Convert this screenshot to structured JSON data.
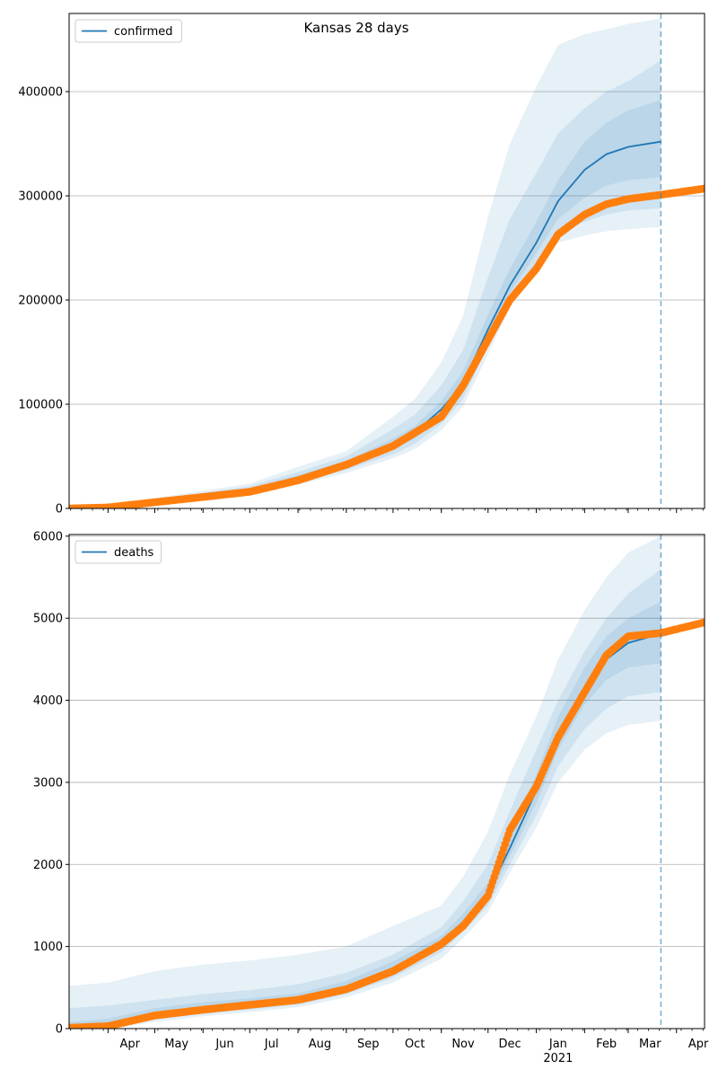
{
  "figure_title": "Kansas 28 days",
  "colors": {
    "model": "#1f77b4",
    "observed": "#ff7f0e",
    "grid": "#b0b0b0",
    "frame": "#000000"
  },
  "x_axis": {
    "month_labels": [
      "Apr",
      "May",
      "Jun",
      "Jul",
      "Aug",
      "Sep",
      "Oct",
      "Nov",
      "Dec",
      "Jan",
      "Feb",
      "Mar",
      "Apr"
    ],
    "year_label": "2021"
  },
  "chart_data": [
    {
      "type": "line",
      "title": "Kansas 28 days",
      "legend": [
        "confirmed"
      ],
      "legend_position": "top-left",
      "grid": "y",
      "xlim": [
        "2020-03-07",
        "2021-04-19"
      ],
      "ylim": [
        0,
        475000
      ],
      "yticks": [
        0,
        100000,
        200000,
        300000,
        400000
      ],
      "ytick_labels": [
        "0",
        "100000",
        "200000",
        "300000",
        "400000"
      ],
      "forecast_start": "2021-03-22",
      "x": [
        "2020-03-07",
        "2020-04-01",
        "2020-05-01",
        "2020-06-01",
        "2020-07-01",
        "2020-08-01",
        "2020-09-01",
        "2020-10-01",
        "2020-10-15",
        "2020-11-01",
        "2020-11-15",
        "2020-12-01",
        "2020-12-15",
        "2021-01-01",
        "2021-01-15",
        "2021-02-01",
        "2021-02-15",
        "2021-03-01",
        "2021-03-22"
      ],
      "series": [
        {
          "name": "confirmed",
          "values": [
            0,
            1000,
            7000,
            12000,
            18000,
            30000,
            43000,
            62000,
            73000,
            95000,
            120000,
            172000,
            214000,
            255000,
            295000,
            325000,
            340000,
            347000,
            352000
          ]
        }
      ],
      "bands": [
        {
          "lower": [
            0,
            400,
            4000,
            8000,
            14000,
            23000,
            34000,
            48000,
            57000,
            75000,
            98000,
            148000,
            193000,
            228000,
            255000,
            262000,
            266000,
            268000,
            270000
          ],
          "upper": [
            2000,
            2000,
            10000,
            17000,
            24000,
            40000,
            55000,
            88000,
            105000,
            140000,
            185000,
            280000,
            350000,
            405000,
            445000,
            455000,
            460000,
            465000,
            470000
          ]
        },
        {
          "lower": [
            0,
            600,
            5000,
            9500,
            15500,
            25000,
            37000,
            52000,
            62000,
            81000,
            105000,
            156000,
            200000,
            236000,
            264000,
            275000,
            282000,
            286000,
            288000
          ],
          "upper": [
            1500,
            1500,
            8500,
            15000,
            21500,
            35000,
            50000,
            76000,
            90000,
            118000,
            152000,
            222000,
            278000,
            322000,
            360000,
            384000,
            400000,
            410000,
            430000
          ]
        },
        {
          "lower": [
            0,
            800,
            6000,
            11000,
            17000,
            28000,
            40000,
            57000,
            67000,
            88000,
            112000,
            163000,
            207000,
            245000,
            278000,
            298000,
            310000,
            315000,
            318000
          ],
          "upper": [
            1000,
            1200,
            7500,
            13000,
            19000,
            32000,
            46000,
            67000,
            79000,
            103000,
            132000,
            186000,
            230000,
            275000,
            315000,
            352000,
            370000,
            382000,
            392000
          ]
        }
      ],
      "observed": {
        "x": [
          "2020-03-07",
          "2020-04-01",
          "2020-05-01",
          "2020-06-01",
          "2020-07-01",
          "2020-08-01",
          "2020-09-01",
          "2020-10-01",
          "2020-11-01",
          "2020-11-15",
          "2020-12-01",
          "2020-12-15",
          "2021-01-01",
          "2021-01-15",
          "2021-02-01",
          "2021-02-15",
          "2021-03-01",
          "2021-03-22",
          "2021-04-19"
        ],
        "values": [
          0,
          1000,
          6000,
          11000,
          16000,
          27000,
          42000,
          60000,
          88000,
          118000,
          162000,
          200000,
          230000,
          263000,
          282000,
          292000,
          297000,
          301000,
          307000
        ]
      }
    },
    {
      "type": "line",
      "title": "",
      "legend": [
        "deaths"
      ],
      "legend_position": "top-left",
      "grid": "y",
      "xlim": [
        "2020-03-07",
        "2021-04-19"
      ],
      "ylim": [
        0,
        6020
      ],
      "yticks": [
        0,
        1000,
        2000,
        3000,
        4000,
        5000,
        6000
      ],
      "ytick_labels": [
        "0",
        "1000",
        "2000",
        "3000",
        "4000",
        "5000",
        "6000"
      ],
      "forecast_start": "2021-03-22",
      "x": [
        "2020-03-07",
        "2020-04-01",
        "2020-05-01",
        "2020-06-01",
        "2020-07-01",
        "2020-08-01",
        "2020-09-01",
        "2020-10-01",
        "2020-11-01",
        "2020-11-15",
        "2020-12-01",
        "2020-12-15",
        "2021-01-01",
        "2021-01-15",
        "2021-02-01",
        "2021-02-15",
        "2021-03-01",
        "2021-03-22"
      ],
      "series": [
        {
          "name": "deaths",
          "values": [
            10,
            30,
            160,
            240,
            290,
            350,
            500,
            740,
            1060,
            1300,
            1650,
            2200,
            2900,
            3600,
            4150,
            4500,
            4700,
            4810
          ]
        }
      ],
      "bands": [
        {
          "lower": [
            0,
            0,
            80,
            150,
            200,
            260,
            380,
            560,
            850,
            1100,
            1420,
            1900,
            2450,
            3000,
            3400,
            3600,
            3700,
            3750
          ],
          "upper": [
            520,
            560,
            700,
            780,
            830,
            900,
            1000,
            1250,
            1500,
            1850,
            2400,
            3100,
            3800,
            4500,
            5100,
            5500,
            5800,
            6000
          ]
        },
        {
          "lower": [
            0,
            0,
            110,
            180,
            230,
            290,
            420,
            620,
            930,
            1180,
            1500,
            2000,
            2600,
            3200,
            3650,
            3900,
            4050,
            4100
          ],
          "upper": [
            250,
            280,
            350,
            420,
            470,
            540,
            680,
            900,
            1230,
            1550,
            2000,
            2650,
            3400,
            4000,
            4600,
            5000,
            5300,
            5600
          ]
        },
        {
          "lower": [
            0,
            10,
            130,
            210,
            260,
            320,
            460,
            680,
            1000,
            1240,
            1580,
            2100,
            2750,
            3400,
            3950,
            4250,
            4400,
            4450
          ],
          "upper": [
            80,
            120,
            250,
            320,
            370,
            430,
            580,
            820,
            1130,
            1400,
            1780,
            2350,
            3100,
            3800,
            4400,
            4780,
            5000,
            5200
          ]
        }
      ],
      "observed": {
        "x": [
          "2020-03-07",
          "2020-04-01",
          "2020-05-01",
          "2020-06-01",
          "2020-07-01",
          "2020-08-01",
          "2020-09-01",
          "2020-10-01",
          "2020-11-01",
          "2020-11-15",
          "2020-12-01",
          "2020-12-15",
          "2021-01-01",
          "2021-01-15",
          "2021-02-01",
          "2021-02-15",
          "2021-03-01",
          "2021-03-22",
          "2021-04-19"
        ],
        "values": [
          10,
          30,
          160,
          230,
          290,
          350,
          480,
          700,
          1030,
          1250,
          1620,
          2420,
          2950,
          3550,
          4100,
          4550,
          4780,
          4820,
          4950
        ]
      }
    }
  ]
}
